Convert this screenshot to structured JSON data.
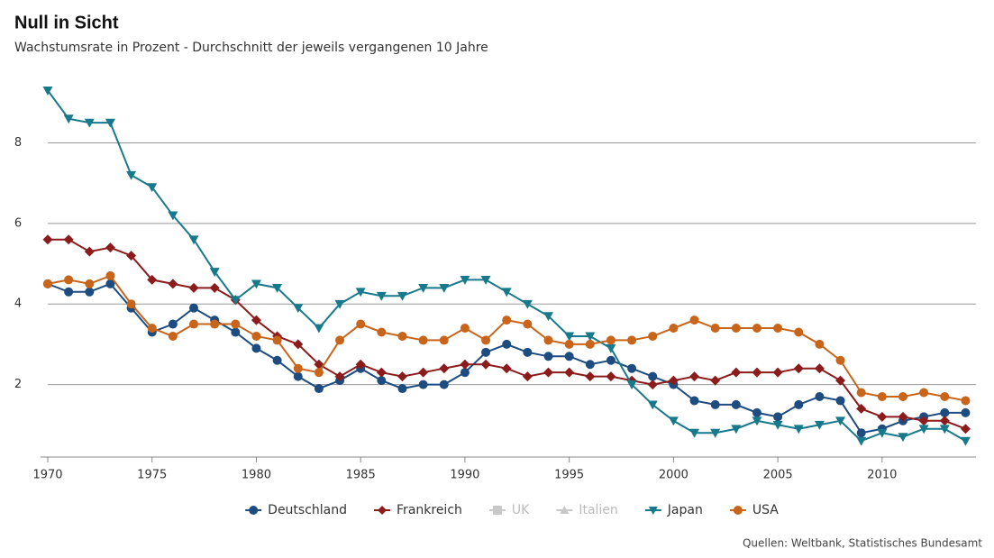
{
  "chart_data": {
    "type": "line",
    "title": "Null in Sicht",
    "subtitle": "Wachstumsrate in Prozent - Durchschnitt der jeweils vergangenen 10 Jahre",
    "source": "Quellen: Weltbank, Statistisches Bundesamt",
    "x": [
      1970,
      1971,
      1972,
      1973,
      1974,
      1975,
      1976,
      1977,
      1978,
      1979,
      1980,
      1981,
      1982,
      1983,
      1984,
      1985,
      1986,
      1987,
      1988,
      1989,
      1990,
      1991,
      1992,
      1993,
      1994,
      1995,
      1996,
      1997,
      1998,
      1999,
      2000,
      2001,
      2002,
      2003,
      2004,
      2005,
      2006,
      2007,
      2008,
      2009,
      2010,
      2011,
      2012,
      2013,
      2014
    ],
    "xlim": [
      1970,
      2014.5
    ],
    "xticks": [
      1970,
      1975,
      1980,
      1985,
      1990,
      1995,
      2000,
      2005,
      2010
    ],
    "ylim": [
      0.2,
      9.6
    ],
    "yticks": [
      2,
      4,
      6,
      8
    ],
    "grid": true,
    "legend": "bottom",
    "series": [
      {
        "name": "Deutschland",
        "color": "#1c4c80",
        "marker": "circle",
        "visible": true,
        "values": [
          4.5,
          4.3,
          4.3,
          4.5,
          3.9,
          3.3,
          3.5,
          3.9,
          3.6,
          3.3,
          2.9,
          2.6,
          2.2,
          1.9,
          2.1,
          2.4,
          2.1,
          1.9,
          2.0,
          2.0,
          2.3,
          2.8,
          3.0,
          2.8,
          2.7,
          2.7,
          2.5,
          2.6,
          2.4,
          2.2,
          2.0,
          1.6,
          1.5,
          1.5,
          1.3,
          1.2,
          1.5,
          1.7,
          1.6,
          0.8,
          0.9,
          1.1,
          1.2,
          1.3,
          1.3
        ]
      },
      {
        "name": "Frankreich",
        "color": "#8c1c1c",
        "marker": "diamond",
        "visible": true,
        "values": [
          5.6,
          5.6,
          5.3,
          5.4,
          5.2,
          4.6,
          4.5,
          4.4,
          4.4,
          4.1,
          3.6,
          3.2,
          3.0,
          2.5,
          2.2,
          2.5,
          2.3,
          2.2,
          2.3,
          2.4,
          2.5,
          2.5,
          2.4,
          2.2,
          2.3,
          2.3,
          2.2,
          2.2,
          2.1,
          2.0,
          2.1,
          2.2,
          2.1,
          2.3,
          2.3,
          2.3,
          2.4,
          2.4,
          2.1,
          1.4,
          1.2,
          1.2,
          1.1,
          1.1,
          0.9
        ]
      },
      {
        "name": "UK",
        "color": "#c8c8c8",
        "marker": "square",
        "visible": false,
        "values": [
          null,
          null,
          null,
          null,
          null,
          null,
          null,
          null,
          null,
          null,
          null,
          null,
          null,
          null,
          null,
          null,
          null,
          null,
          null,
          null,
          null,
          null,
          null,
          null,
          null,
          null,
          null,
          null,
          null,
          null,
          null,
          null,
          null,
          null,
          null,
          null,
          null,
          null,
          null,
          null,
          null,
          null,
          null,
          null,
          null
        ]
      },
      {
        "name": "Italien",
        "color": "#c8c8c8",
        "marker": "triangle-up",
        "visible": false,
        "values": [
          null,
          null,
          null,
          null,
          null,
          null,
          null,
          null,
          null,
          null,
          null,
          null,
          null,
          null,
          null,
          null,
          null,
          null,
          null,
          null,
          null,
          null,
          null,
          null,
          null,
          null,
          null,
          null,
          null,
          null,
          null,
          null,
          null,
          null,
          null,
          null,
          null,
          null,
          null,
          null,
          null,
          null,
          null,
          null,
          null
        ]
      },
      {
        "name": "Japan",
        "color": "#17798c",
        "marker": "triangle-down",
        "visible": true,
        "values": [
          9.3,
          8.6,
          8.5,
          8.5,
          7.2,
          6.9,
          6.2,
          5.6,
          4.8,
          4.1,
          4.5,
          4.4,
          3.9,
          3.4,
          4.0,
          4.3,
          4.2,
          4.2,
          4.4,
          4.4,
          4.6,
          4.6,
          4.3,
          4.0,
          3.7,
          3.2,
          3.2,
          2.9,
          2.0,
          1.5,
          1.1,
          0.8,
          0.8,
          0.9,
          1.1,
          1.0,
          0.9,
          1.0,
          1.1,
          0.6,
          0.8,
          0.7,
          0.9,
          0.9,
          0.6
        ]
      },
      {
        "name": "USA",
        "color": "#c8651b",
        "marker": "circle",
        "visible": true,
        "values": [
          4.5,
          4.6,
          4.5,
          4.7,
          4.0,
          3.4,
          3.2,
          3.5,
          3.5,
          3.5,
          3.2,
          3.1,
          2.4,
          2.3,
          3.1,
          3.5,
          3.3,
          3.2,
          3.1,
          3.1,
          3.4,
          3.1,
          3.6,
          3.5,
          3.1,
          3.0,
          3.0,
          3.1,
          3.1,
          3.2,
          3.4,
          3.6,
          3.4,
          3.4,
          3.4,
          3.4,
          3.3,
          3.0,
          2.6,
          1.8,
          1.7,
          1.7,
          1.8,
          1.7,
          1.6
        ]
      }
    ]
  }
}
